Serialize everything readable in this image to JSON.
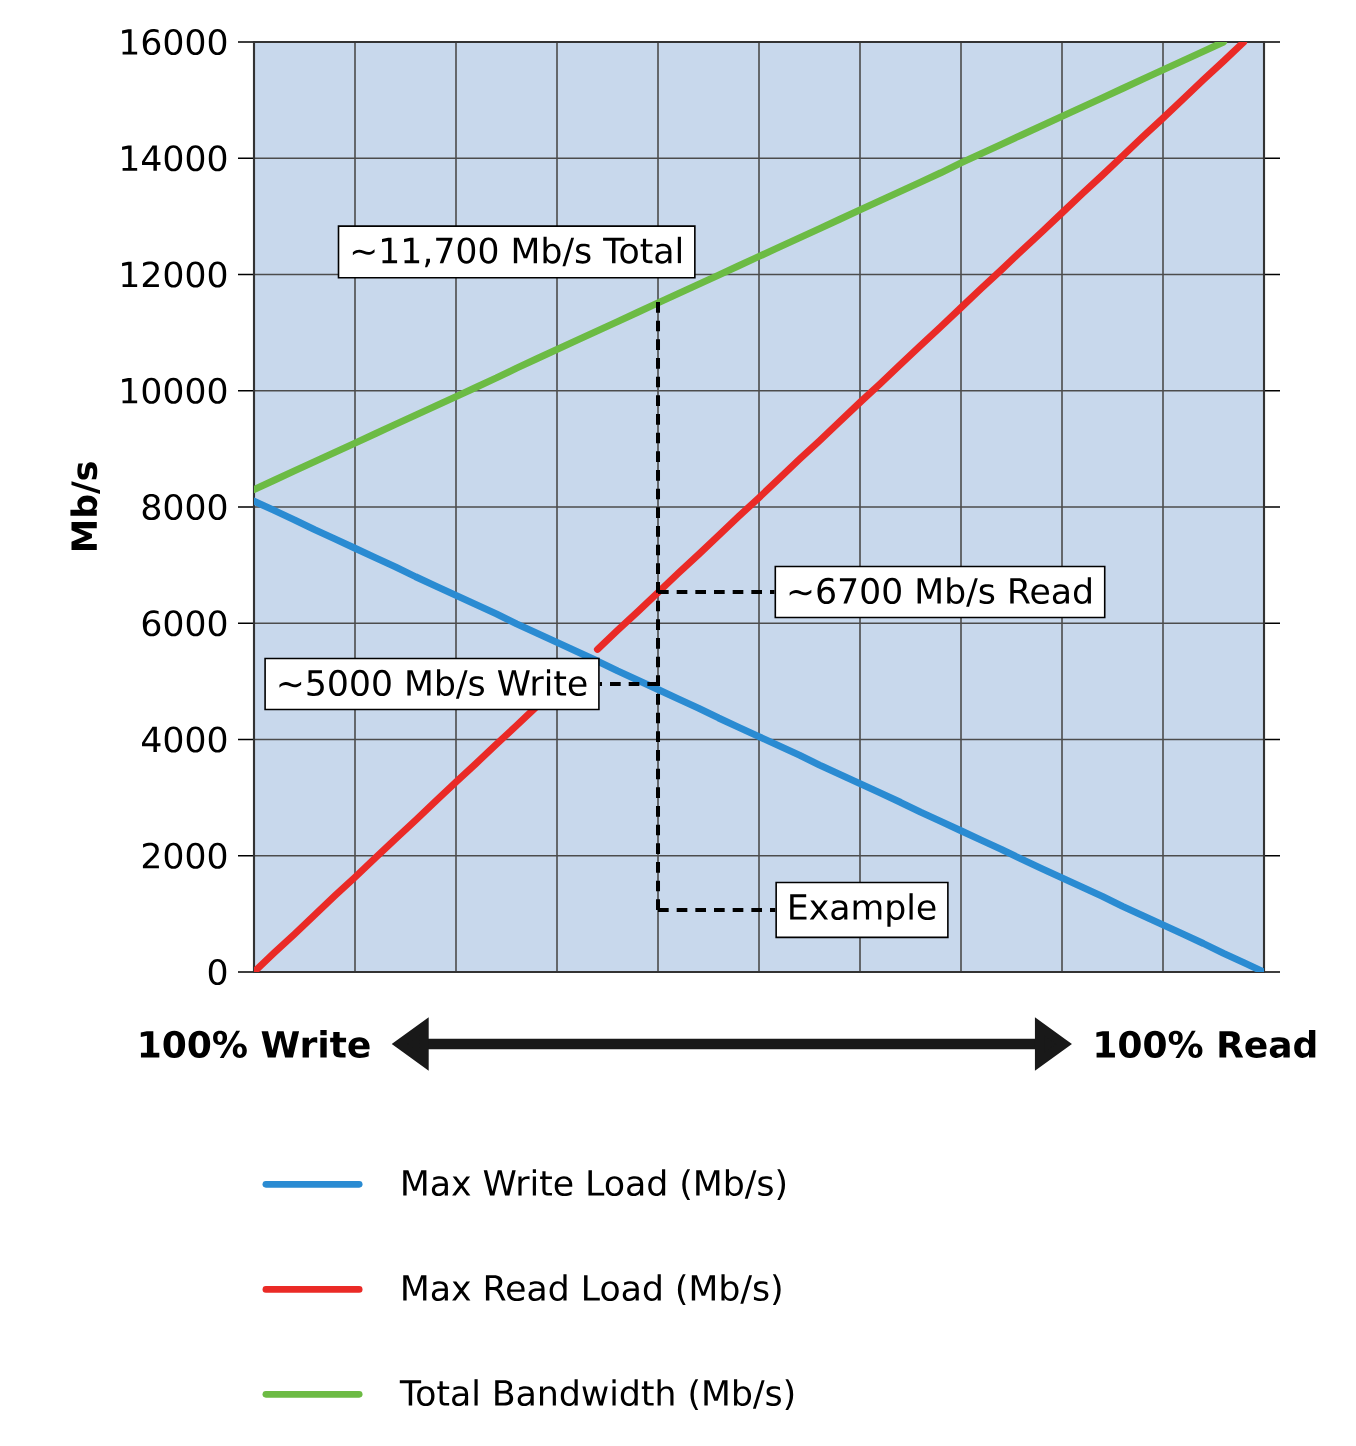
{
  "chart_data": {
    "type": "line",
    "ylabel": "Mb/s",
    "categories": [
      null,
      null,
      null,
      null,
      null,
      null,
      null,
      null,
      null,
      null,
      null,
      null,
      null,
      null,
      null,
      null,
      null,
      null,
      null,
      null,
      null,
      null,
      null,
      null,
      null,
      null,
      null,
      null,
      null,
      null,
      null,
      null,
      null,
      null,
      null,
      null,
      null,
      null,
      null,
      null,
      null,
      null,
      null,
      null,
      null,
      null,
      null,
      null,
      null,
      null,
      null
    ],
    "series": [
      {
        "name": "Max Write Load (Mb/s)",
        "color": "#2a8bd2",
        "values": [
          8100,
          7940,
          7780,
          7610,
          7450,
          7290,
          7130,
          6970,
          6800,
          6640,
          6480,
          6320,
          6160,
          5990,
          5830,
          5670,
          5510,
          5350,
          5180,
          5020,
          4860,
          4700,
          4540,
          4370,
          4210,
          4050,
          3890,
          3730,
          3560,
          3400,
          3240,
          3080,
          2920,
          2750,
          2590,
          2430,
          2270,
          2110,
          1940,
          1780,
          1620,
          1460,
          1300,
          1130,
          970,
          810,
          650,
          490,
          320,
          160,
          0
        ]
      },
      {
        "name": "Max Read Load (Mb/s)",
        "color": "#ea2a26",
        "values": [
          0,
          330,
          650,
          980,
          1310,
          1630,
          1960,
          2290,
          2610,
          2940,
          3270,
          3590,
          3920,
          4240,
          4570,
          null,
          null,
          5550,
          5880,
          6200,
          6530,
          6860,
          7180,
          7510,
          7840,
          8160,
          8490,
          8820,
          9140,
          9470,
          9800,
          10120,
          10450,
          10780,
          11100,
          11430,
          11760,
          12080,
          12410,
          12730,
          13060,
          13390,
          13710,
          14040,
          14370,
          14690,
          15020,
          15350,
          15670,
          16000,
          null
        ]
      },
      {
        "name": "Total Bandwidth (Mb/s)",
        "color": "#6cbb44",
        "values": [
          8300,
          8460,
          8620,
          8780,
          8940,
          9100,
          9260,
          9420,
          9580,
          9740,
          9900,
          10060,
          10220,
          10390,
          10550,
          10710,
          10870,
          11030,
          11190,
          11350,
          11510,
          11670,
          11830,
          11990,
          12150,
          12310,
          12470,
          12630,
          12790,
          12950,
          13110,
          13270,
          13430,
          13590,
          13750,
          13920,
          14080,
          14240,
          14400,
          14560,
          14720,
          14880,
          15040,
          15200,
          15360,
          15520,
          15680,
          15840,
          16000,
          null,
          null
        ]
      }
    ],
    "ylim": [
      0,
      16000
    ],
    "yticks": [
      0,
      2000,
      4000,
      6000,
      8000,
      10000,
      12000,
      14000,
      16000
    ],
    "grid": true,
    "legend": "bottom",
    "annotations": [
      "~11,700 Mb/s Total",
      "~6700 Mb/s Read",
      "~5000 Mb/s Write",
      "Example",
      "100% Write",
      "100% Read"
    ]
  }
}
